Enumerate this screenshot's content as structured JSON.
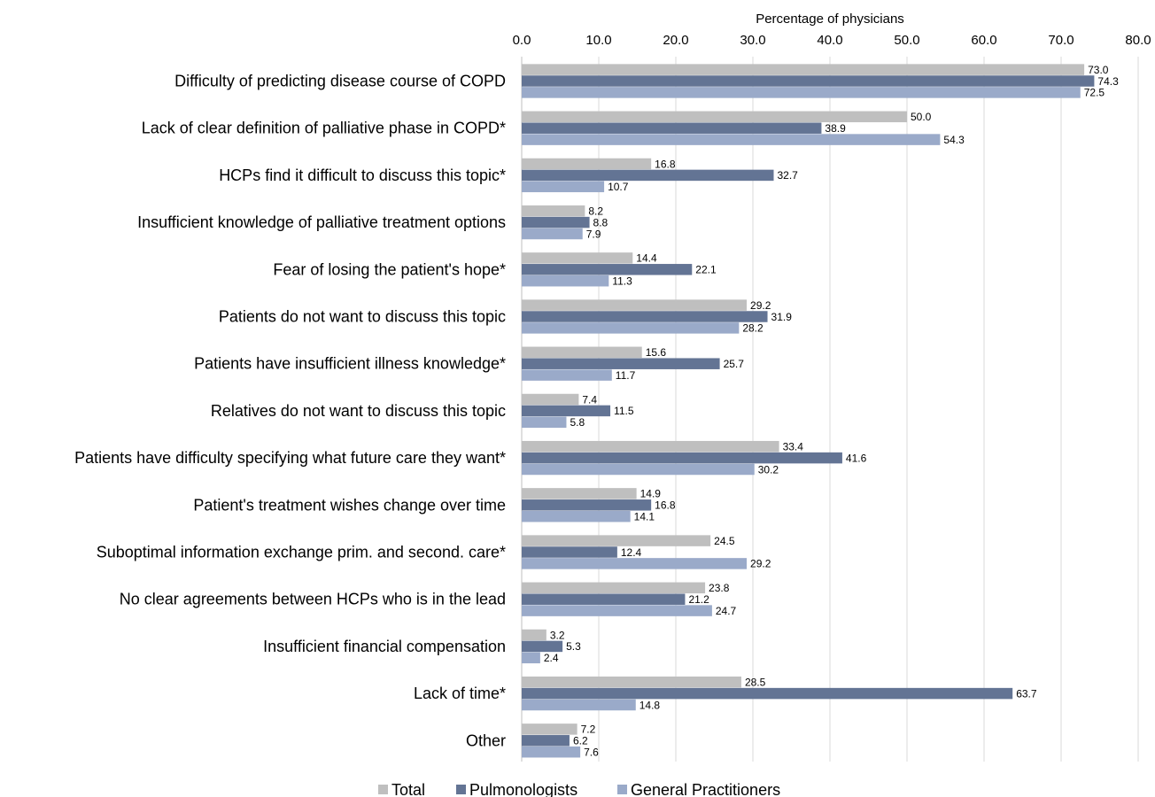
{
  "chart_data": {
    "type": "bar",
    "orientation": "horizontal",
    "xlabel": "Percentage of physicians",
    "xlim": [
      0,
      80
    ],
    "xticks": [
      "0.0",
      "10.0",
      "20.0",
      "30.0",
      "40.0",
      "50.0",
      "60.0",
      "70.0",
      "80.0"
    ],
    "x_axis_position": "top",
    "grid": "vertical",
    "legend_position": "bottom",
    "categories": [
      "Difficulty of predicting disease course of COPD",
      "Lack of clear definition of palliative phase in COPD*",
      "HCPs find it difficult to discuss this topic*",
      "Insufficient knowledge of palliative treatment options",
      "Fear of losing the patient's hope*",
      "Patients do not want to discuss this topic",
      "Patients have insufficient illness knowledge*",
      "Relatives do not want to discuss this topic",
      "Patients have difficulty specifying what future care they want*",
      "Patient's treatment wishes change over time",
      "Suboptimal information exchange prim. and second. care*",
      "No clear agreements between HCPs who is in the lead",
      "Insufficient financial compensation",
      "Lack of time*",
      "Other"
    ],
    "series": [
      {
        "name": "Total",
        "color": "#bfbfbf",
        "values": [
          73.0,
          50.0,
          16.8,
          8.2,
          14.4,
          29.2,
          15.6,
          7.4,
          33.4,
          14.9,
          24.5,
          23.8,
          3.2,
          28.5,
          7.2
        ]
      },
      {
        "name": "Pulmonologists",
        "color": "#637494",
        "values": [
          74.3,
          38.9,
          32.7,
          8.8,
          22.1,
          31.9,
          25.7,
          11.5,
          41.6,
          16.8,
          12.4,
          21.2,
          5.3,
          63.7,
          6.2
        ]
      },
      {
        "name": "General Practitioners",
        "color": "#9aaac9",
        "values": [
          72.5,
          54.3,
          10.7,
          7.9,
          11.3,
          28.2,
          11.7,
          5.8,
          30.2,
          14.1,
          29.2,
          24.7,
          2.4,
          14.8,
          7.6
        ]
      }
    ]
  }
}
